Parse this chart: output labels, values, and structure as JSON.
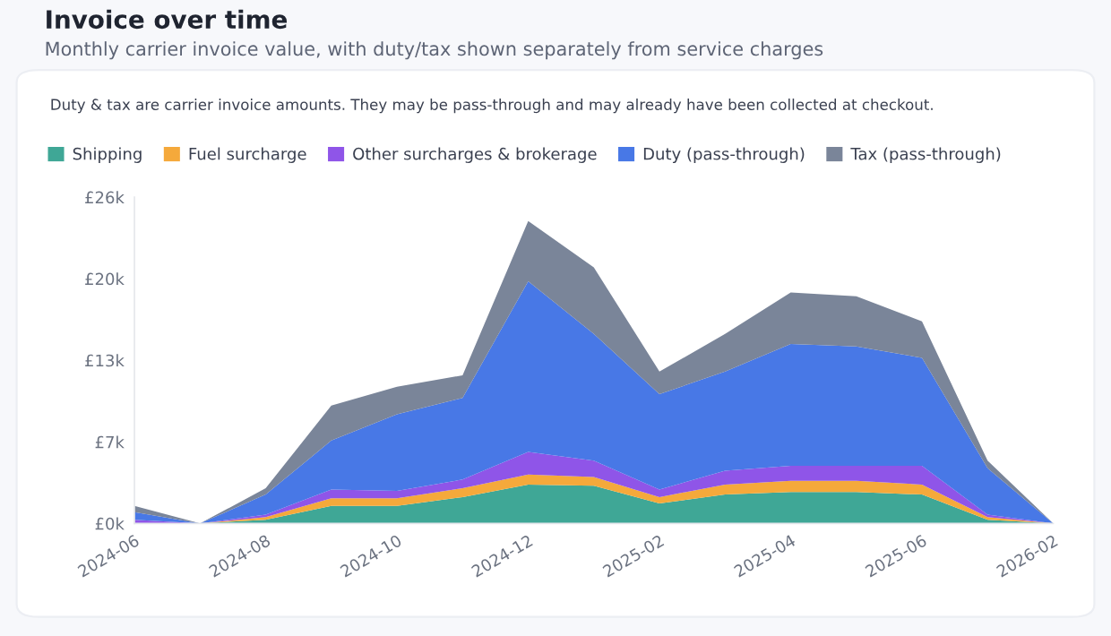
{
  "chart_data": {
    "type": "area",
    "title": "Invoice over time",
    "subtitle": "Monthly carrier invoice value, with duty/tax shown separately from service charges",
    "annotations": [
      "Duty & tax are carrier invoice amounts. They may be pass-through and may already have been collected at checkout."
    ],
    "categories": [
      "2024-06",
      null,
      "2024-08",
      null,
      "2024-10",
      null,
      "2024-12",
      null,
      "2025-02",
      null,
      "2025-04",
      null,
      "2025-06",
      null,
      "2026-02"
    ],
    "stacked": true,
    "series": [
      {
        "name": "Shipping",
        "color": "#3fa796",
        "values": [
          0,
          0,
          0.3,
          1.4,
          1.4,
          2.1,
          3.1,
          3.0,
          1.6,
          2.3,
          2.5,
          2.5,
          2.3,
          0.3,
          0
        ]
      },
      {
        "name": "Fuel surcharge",
        "color": "#f5a93b",
        "values": [
          0,
          0,
          0.2,
          0.6,
          0.6,
          0.7,
          0.8,
          0.7,
          0.5,
          0.8,
          0.9,
          0.9,
          0.8,
          0.2,
          0
        ]
      },
      {
        "name": "Other surcharges & brokerage",
        "color": "#8f55e8",
        "values": [
          0.3,
          0,
          0.2,
          0.7,
          0.6,
          0.7,
          1.8,
          1.3,
          0.6,
          1.1,
          1.2,
          1.2,
          1.5,
          0.2,
          0
        ]
      },
      {
        "name": "Duty (pass-through)",
        "color": "#4878e6",
        "values": [
          0.6,
          0,
          1.6,
          3.9,
          6.1,
          6.5,
          13.6,
          10.1,
          7.6,
          7.9,
          9.7,
          9.5,
          8.6,
          3.7,
          0
        ]
      },
      {
        "name": "Tax (pass-through)",
        "color": "#7a8599",
        "values": [
          0.5,
          0,
          0.5,
          2.8,
          2.2,
          1.8,
          4.8,
          5.3,
          1.8,
          3.0,
          4.1,
          4.0,
          2.9,
          0.6,
          0
        ]
      }
    ],
    "ylim": [
      0,
      26
    ],
    "yticks": [
      {
        "value": 0,
        "label": "£0k"
      },
      {
        "value": 6.5,
        "label": "£7k"
      },
      {
        "value": 13,
        "label": "£13k"
      },
      {
        "value": 19.5,
        "label": "£20k"
      },
      {
        "value": 26,
        "label": "£26k"
      }
    ],
    "grid": false,
    "legend": "top left"
  }
}
